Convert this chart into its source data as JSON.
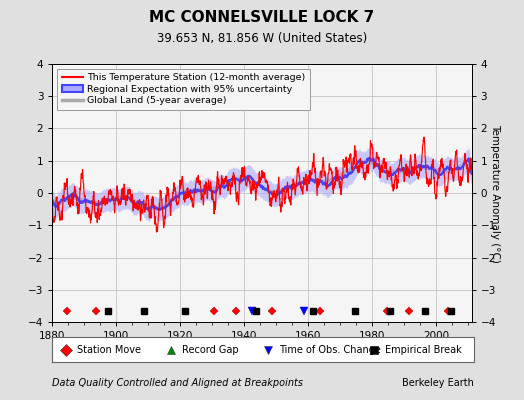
{
  "title": "MC CONNELSVILLE LOCK 7",
  "subtitle": "39.653 N, 81.856 W (United States)",
  "ylabel": "Temperature Anomaly (°C)",
  "xlabel_bottom": "Data Quality Controlled and Aligned at Breakpoints",
  "xlabel_right": "Berkeley Earth",
  "ylim": [
    -4,
    4
  ],
  "xlim": [
    1880,
    2011
  ],
  "xticks": [
    1880,
    1900,
    1920,
    1940,
    1960,
    1980,
    2000
  ],
  "yticks": [
    -4,
    -3,
    -2,
    -1,
    0,
    1,
    2,
    3,
    4
  ],
  "bg_color": "#e0e0e0",
  "plot_bg_color": "#f5f5f5",
  "station_color": "#ff0000",
  "regional_color": "#4444ff",
  "regional_fill_color": "#aaaaff",
  "global_color": "#aaaaaa",
  "legend_labels": [
    "This Temperature Station (12-month average)",
    "Regional Expectation with 95% uncertainty",
    "Global Land (5-year average)"
  ],
  "marker_legend": [
    {
      "label": "Station Move",
      "color": "#ff0000",
      "marker": "D"
    },
    {
      "label": "Record Gap",
      "color": "#008800",
      "marker": "^"
    },
    {
      "label": "Time of Obs. Change",
      "color": "#0000ff",
      "marker": "v"
    },
    {
      "label": "Empirical Break",
      "color": "#000000",
      "marker": "s"
    }
  ],
  "station_moves": [
    1884.5,
    1893.5,
    1930.5,
    1937.5,
    1948.5,
    1963.5,
    1984.5,
    1991.5,
    2003.5
  ],
  "obs_changes": [
    1942.5,
    1958.5
  ],
  "emp_breaks": [
    1897.5,
    1908.5,
    1921.5,
    1943.5,
    1961.5,
    1974.5,
    1985.5,
    1996.5,
    2004.5
  ],
  "grid_color": "#bbbbbb"
}
